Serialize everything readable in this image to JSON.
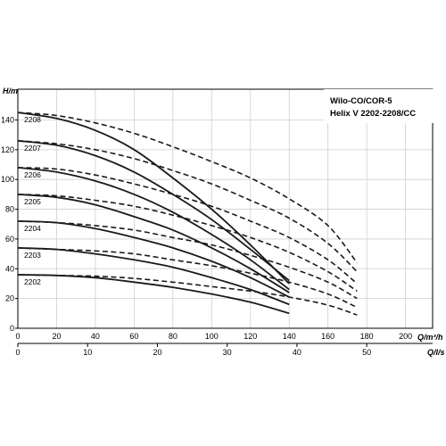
{
  "chart_data": {
    "type": "line",
    "title_lines": [
      "Wilo-CO/COR-5",
      "Helix V 2202-2208/CC"
    ],
    "ylabel": "H/m",
    "xlabel": "Q/m³/h",
    "x2label": "Q/l/s",
    "xlim": [
      0,
      220
    ],
    "ylim": [
      0,
      150
    ],
    "x_ticks": [
      0,
      20,
      40,
      60,
      80,
      100,
      120,
      140,
      160,
      180,
      200
    ],
    "y_ticks": [
      0,
      20,
      40,
      60,
      80,
      100,
      120,
      140
    ],
    "x2_ticks": [
      0,
      10,
      20,
      30,
      40,
      50
    ],
    "grid": true,
    "style_note_solid": "solid curves end at Q=140 m³/h",
    "series": [
      {
        "name": "2208",
        "solid": {
          "x": [
            0,
            20,
            40,
            60,
            80,
            100,
            120,
            140
          ],
          "y": [
            145,
            141,
            133,
            120,
            101,
            80,
            56,
            30
          ]
        },
        "dashed": {
          "x": [
            0,
            20,
            40,
            60,
            80,
            100,
            120,
            140,
            160,
            175
          ],
          "y": [
            145,
            143,
            138,
            131,
            122,
            112,
            101,
            87,
            69,
            44
          ]
        }
      },
      {
        "name": "2207",
        "solid": {
          "x": [
            0,
            20,
            40,
            60,
            80,
            100,
            120,
            140
          ],
          "y": [
            126,
            123,
            116,
            105,
            90,
            73,
            53,
            32
          ]
        },
        "dashed": {
          "x": [
            0,
            20,
            40,
            60,
            80,
            100,
            120,
            140,
            160,
            175
          ],
          "y": [
            126,
            124,
            120,
            114,
            106,
            97,
            86,
            74,
            57,
            38
          ]
        }
      },
      {
        "name": "2206",
        "solid": {
          "x": [
            0,
            20,
            40,
            60,
            80,
            100,
            120,
            140
          ],
          "y": [
            108,
            105,
            99,
            90,
            78,
            63,
            46,
            26
          ]
        },
        "dashed": {
          "x": [
            0,
            20,
            40,
            60,
            80,
            100,
            120,
            140,
            160,
            175
          ],
          "y": [
            108,
            107,
            103,
            97,
            90,
            82,
            72,
            61,
            46,
            30
          ]
        }
      },
      {
        "name": "2205",
        "solid": {
          "x": [
            0,
            20,
            40,
            60,
            80,
            100,
            120,
            140
          ],
          "y": [
            90,
            88,
            83,
            75,
            66,
            54,
            40,
            24
          ]
        },
        "dashed": {
          "x": [
            0,
            20,
            40,
            60,
            80,
            100,
            120,
            140,
            160,
            175
          ],
          "y": [
            90,
            89,
            86,
            82,
            76,
            69,
            61,
            51,
            38,
            25
          ]
        }
      },
      {
        "name": "2204",
        "solid": {
          "x": [
            0,
            20,
            40,
            60,
            80,
            100,
            120,
            140
          ],
          "y": [
            72,
            71,
            67,
            61,
            54,
            45,
            34,
            21
          ]
        },
        "dashed": {
          "x": [
            0,
            20,
            40,
            60,
            80,
            100,
            120,
            140,
            160,
            175
          ],
          "y": [
            72,
            71,
            69,
            66,
            61,
            56,
            49,
            41,
            31,
            20
          ]
        }
      },
      {
        "name": "2203",
        "solid": {
          "x": [
            0,
            20,
            40,
            60,
            80,
            100,
            120,
            140
          ],
          "y": [
            54,
            53,
            50,
            46,
            41,
            34,
            26,
            16
          ]
        },
        "dashed": {
          "x": [
            0,
            20,
            40,
            60,
            80,
            100,
            120,
            140,
            160,
            175
          ],
          "y": [
            54,
            53,
            52,
            50,
            46,
            42,
            37,
            31,
            23,
            14
          ]
        }
      },
      {
        "name": "2202",
        "solid": {
          "x": [
            0,
            20,
            40,
            60,
            80,
            100,
            120,
            140
          ],
          "y": [
            36,
            35.5,
            34,
            31,
            27.5,
            23,
            17.5,
            10
          ]
        },
        "dashed": {
          "x": [
            0,
            20,
            40,
            60,
            80,
            100,
            120,
            140,
            160,
            175
          ],
          "y": [
            36,
            35.5,
            35,
            33.5,
            31,
            28,
            25,
            21,
            15.5,
            9
          ]
        }
      }
    ],
    "colors": {
      "curve": "#1a1a1a",
      "grid": "#cfcfcf",
      "axis": "#000000"
    }
  }
}
